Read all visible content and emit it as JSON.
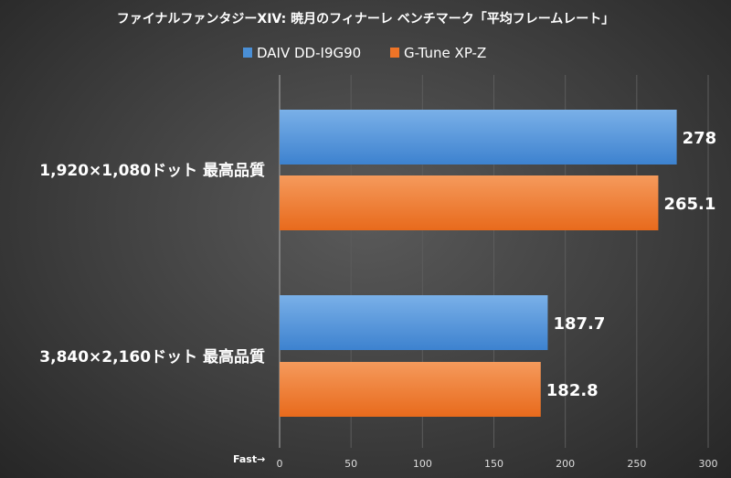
{
  "chart_data": {
    "type": "bar",
    "orientation": "horizontal",
    "title": "ファイナルファンタジーXIV: 暁月のフィナーレ ベンチマーク「平均フレームレート」",
    "categories": [
      "1,920×1,080ドット 最高品質",
      "3,840×2,160ドット 最高品質"
    ],
    "series": [
      {
        "name": "DAIV DD-I9G90",
        "values": [
          278,
          187.7
        ],
        "color": "#4a8fd6"
      },
      {
        "name": "G-Tune XP-Z",
        "values": [
          265.1,
          182.8
        ],
        "color": "#ee7427"
      }
    ],
    "data_labels": [
      [
        "278",
        "187.7"
      ],
      [
        "265.1",
        "182.8"
      ]
    ],
    "xlim": [
      0,
      300
    ],
    "xticks": [
      "0",
      "50",
      "100",
      "150",
      "200",
      "250",
      "300"
    ],
    "xlabel": "Fast→",
    "ylabel": "",
    "grid": true,
    "legend_position": "top"
  }
}
